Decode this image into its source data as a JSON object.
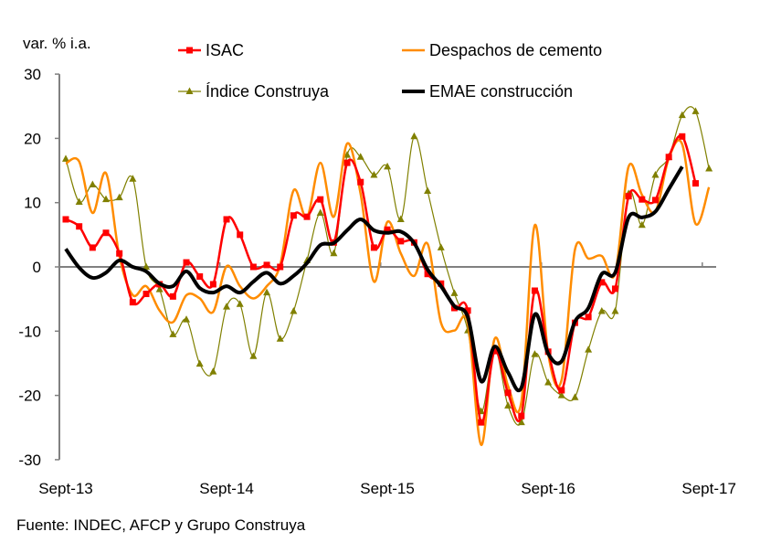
{
  "chart_data": {
    "type": "line",
    "ylabel": "var. % i.a.",
    "ylim": [
      -30,
      30
    ],
    "yticks": [
      30,
      20,
      10,
      0,
      -10,
      -20,
      -30
    ],
    "xtick_labels": [
      "Sept-13",
      "Sept-14",
      "Sept-15",
      "Sept-16",
      "Sept-17"
    ],
    "x_start": "2013-09",
    "x_frequency": "monthly",
    "grid": false,
    "legend_placement": "top",
    "source": "Fuente: INDEC, AFCP y Grupo Construya",
    "series": [
      {
        "name": "ISAC",
        "color": "#ff0000",
        "marker": "square",
        "values": [
          7.4,
          6.3,
          3.0,
          5.3,
          2.1,
          -5.5,
          -4.2,
          -2.7,
          -4.6,
          0.7,
          -1.5,
          -2.7,
          7.4,
          5.0,
          0.0,
          0.3,
          0.0,
          8.0,
          7.8,
          10.5,
          3.8,
          16.2,
          13.2,
          3.0,
          5.8,
          4.0,
          3.8,
          -1.1,
          -2.6,
          -6.4,
          -6.8,
          -24.2,
          -13.1,
          -19.6,
          -23.2,
          -3.7,
          -13.2,
          -19.2,
          -8.7,
          -7.8,
          -2.4,
          -3.4,
          11.0,
          10.5,
          10.4,
          17.1,
          20.3,
          13.0
        ]
      },
      {
        "name": "Despachos de cemento",
        "color": "#ff8c00",
        "marker": "none",
        "values": [
          16.1,
          16.4,
          8.4,
          14.6,
          1.7,
          -4.4,
          -3.0,
          -6.8,
          -8.6,
          -4.4,
          -4.9,
          -7.0,
          0.1,
          -3.0,
          -4.9,
          -3.0,
          0.3,
          11.9,
          7.7,
          16.2,
          7.8,
          19.2,
          11.4,
          -2.3,
          7.0,
          2.1,
          -1.4,
          3.6,
          -8.7,
          -9.9,
          -8.7,
          -27.7,
          -11.2,
          -18.5,
          -21.0,
          6.5,
          -13.5,
          -17.6,
          2.7,
          1.3,
          1.7,
          -1.0,
          15.6,
          11.2,
          8.6,
          16.9,
          19.1,
          6.7,
          12.4
        ]
      },
      {
        "name": "Índice Construya",
        "color": "#808000",
        "marker": "triangle",
        "values": [
          16.8,
          10.1,
          12.8,
          10.5,
          10.8,
          13.7,
          0.0,
          -3.5,
          -10.5,
          -8.2,
          -15.1,
          -16.3,
          -6.2,
          -5.8,
          -13.9,
          -4.0,
          -11.2,
          -6.9,
          1.0,
          8.4,
          2.1,
          17.4,
          17.1,
          14.3,
          15.6,
          7.4,
          20.3,
          11.8,
          3.0,
          -4.1,
          -9.9,
          -22.5,
          -12.8,
          -21.6,
          -24.2,
          -13.6,
          -18.0,
          -20.0,
          -20.3,
          -12.9,
          -6.9,
          -6.9,
          11.4,
          6.5,
          14.3,
          17.1,
          23.6,
          24.2,
          15.3
        ]
      },
      {
        "name": "EMAE construcción",
        "color": "#000000",
        "marker": "none",
        "values": [
          2.8,
          -0.1,
          -1.7,
          -0.9,
          1.0,
          0.0,
          -0.7,
          -2.6,
          -3.0,
          -0.7,
          -3.3,
          -4.0,
          -3.0,
          -4.0,
          -2.3,
          -0.9,
          -2.6,
          -1.4,
          0.6,
          3.4,
          3.7,
          5.7,
          7.4,
          5.7,
          5.3,
          5.5,
          3.7,
          -0.4,
          -3.0,
          -6.1,
          -7.8,
          -17.8,
          -12.4,
          -16.4,
          -18.8,
          -7.4,
          -13.5,
          -14.7,
          -8.5,
          -6.4,
          -1.1,
          -0.9,
          7.7,
          7.7,
          8.6,
          12.1,
          15.6
        ]
      }
    ]
  }
}
